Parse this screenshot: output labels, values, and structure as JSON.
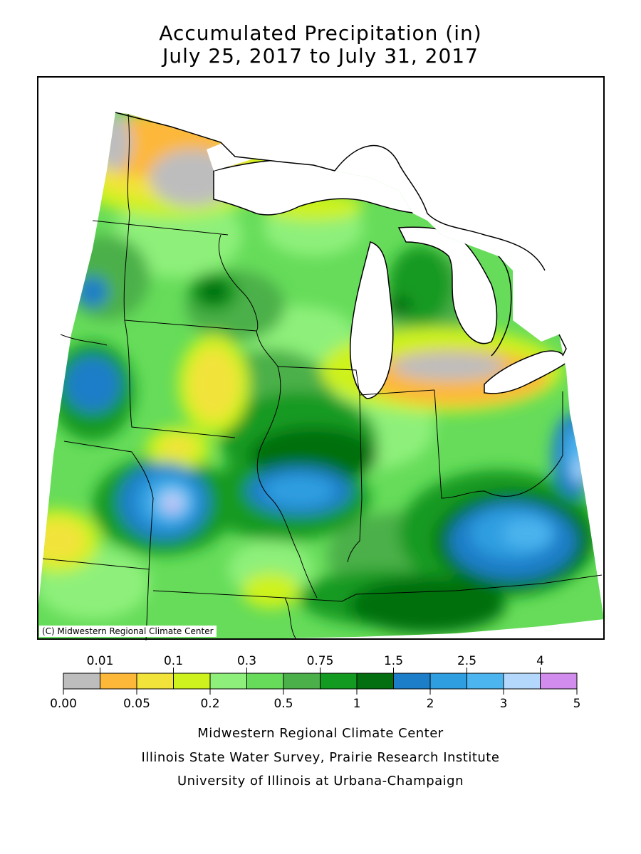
{
  "title_line1": "Accumulated Precipitation (in)",
  "title_line2": "July 25, 2017 to July 31, 2017",
  "credit": "(C) Midwestern Regional Climate Center",
  "legend": {
    "top_labels": [
      "0.01",
      "0.1",
      "0.3",
      "0.75",
      "1.5",
      "2.5",
      "4"
    ],
    "bottom_labels": [
      "0.00",
      "0.05",
      "0.2",
      "0.5",
      "1",
      "2",
      "3",
      "5"
    ],
    "colors": [
      "#bdbdbd",
      "#fdb83a",
      "#f2e33a",
      "#cdf21e",
      "#8ef07a",
      "#66dc5a",
      "#4cb04a",
      "#139a20",
      "#036f10",
      "#1c7ec8",
      "#2f9ee0",
      "#4cb4ee",
      "#b4d8fb",
      "#d28ced"
    ]
  },
  "footer": {
    "line1": "Midwestern Regional Climate Center",
    "line2": "Illinois State Water Survey, Prairie Research Institute",
    "line3": "University of Illinois at Urbana-Champaign"
  }
}
